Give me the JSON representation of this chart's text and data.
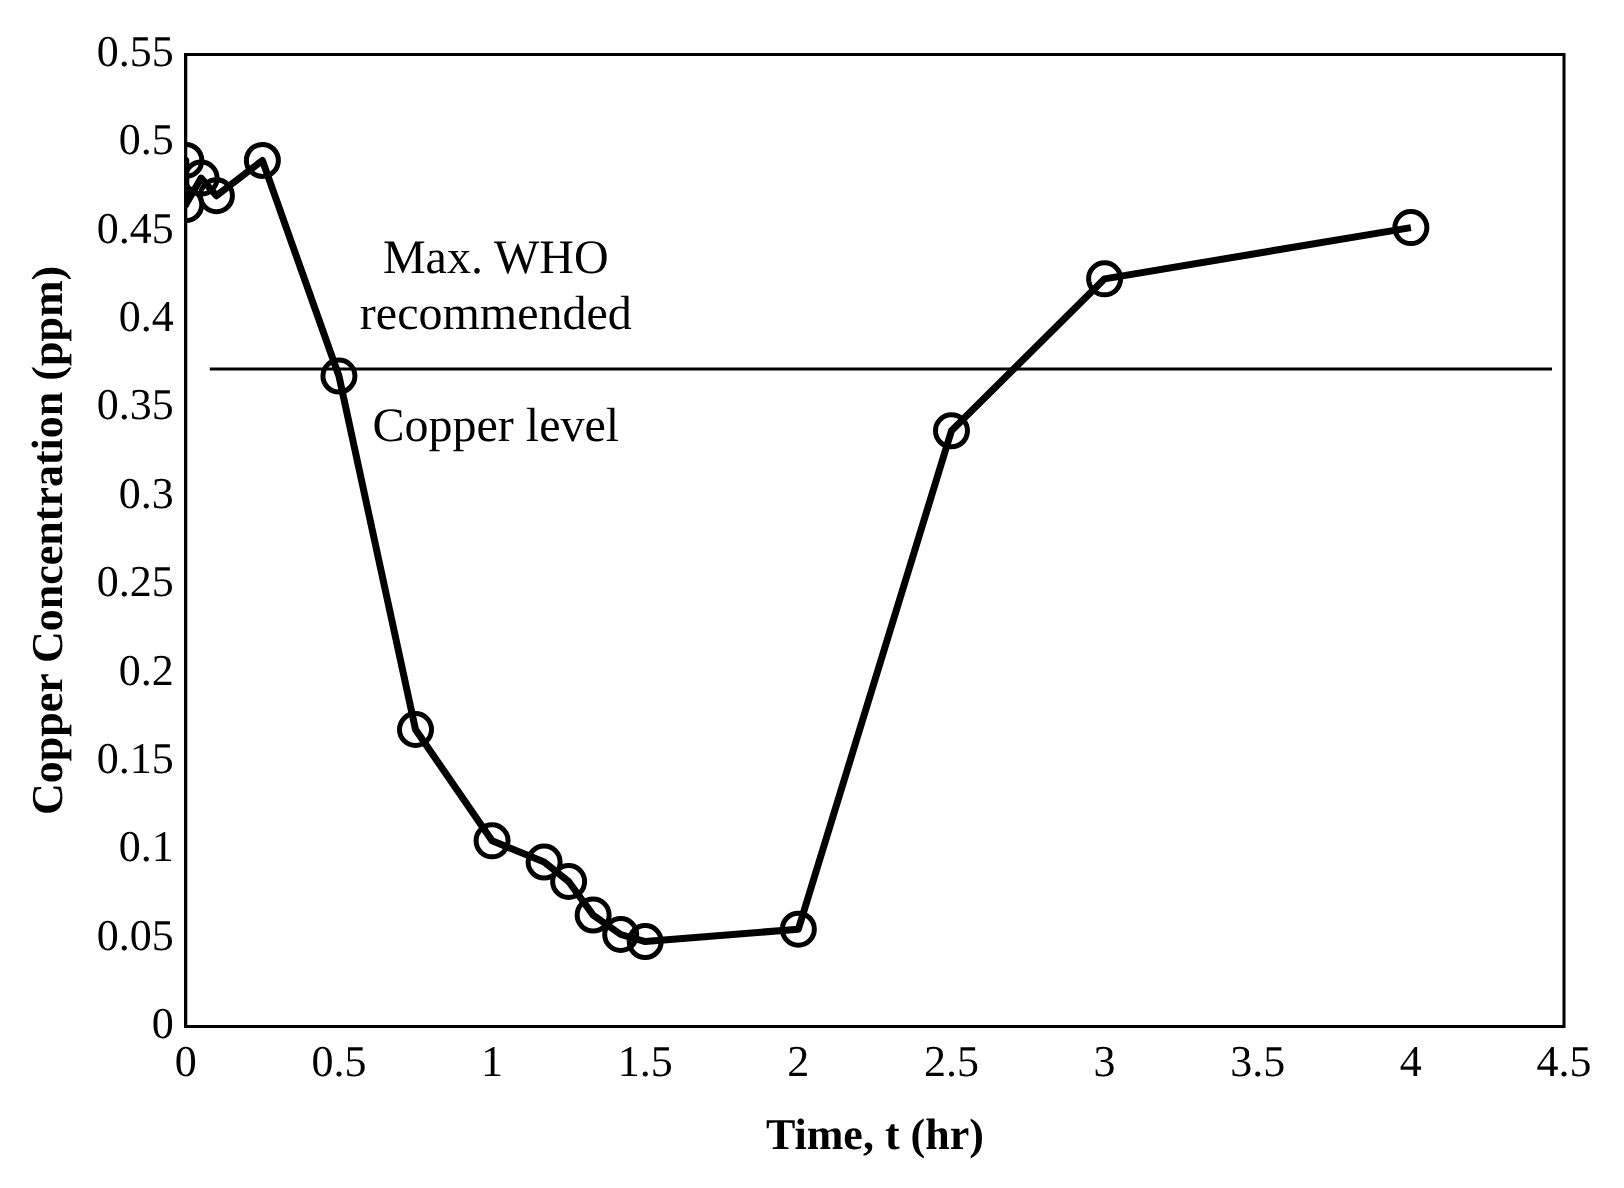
{
  "chart_data": {
    "type": "line",
    "xlabel": "Time, t (hr)",
    "ylabel": "Copper Concentration (ppm)",
    "series": [
      {
        "color": "#000000",
        "x": [
          0,
          0,
          0.05,
          0.1,
          0.25,
          0.5,
          0.75,
          1,
          1.17,
          1.25,
          1.33,
          1.42,
          1.5,
          2,
          2.5,
          3,
          4
        ],
        "values": [
          0.49,
          0.465,
          0.48,
          0.47,
          0.49,
          0.368,
          0.168,
          0.105,
          0.093,
          0.082,
          0.063,
          0.052,
          0.048,
          0.055,
          0.337,
          0.423,
          0.452
        ]
      }
    ],
    "xlim": [
      0,
      4.5
    ],
    "xticks": [
      0,
      0.5,
      1,
      1.5,
      2,
      2.5,
      3,
      3.5,
      4,
      4.5
    ],
    "ylim": [
      0,
      0.55
    ],
    "yticks": [
      0,
      0.05,
      0.1,
      0.15,
      0.2,
      0.25,
      0.3,
      0.35,
      0.4,
      0.45,
      0.5,
      0.55
    ],
    "ref_lines": [
      {
        "axis": "y",
        "value": 0.372,
        "color": "#000000"
      }
    ],
    "annotations": [
      "Max. WHO\nrecommended",
      "Copper level"
    ],
    "marker": "circle",
    "line_style": "solid",
    "grid": false,
    "legend": false
  }
}
